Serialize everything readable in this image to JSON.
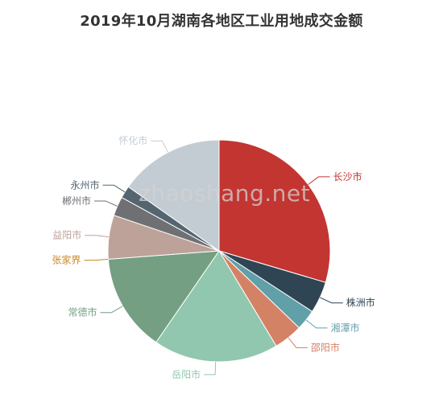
{
  "chart_data": {
    "type": "pie",
    "title": "2019年10月湖南各地区工业用地成交金额",
    "slices": [
      {
        "label": "长沙市",
        "value": 29.6,
        "color": "#c23531"
      },
      {
        "label": "株洲市",
        "value": 4.6,
        "color": "#2f4554"
      },
      {
        "label": "湘潭市",
        "value": 3.0,
        "color": "#61a0a8"
      },
      {
        "label": "邵阳市",
        "value": 4.2,
        "color": "#d48265"
      },
      {
        "label": "岳阳市",
        "value": 18.2,
        "color": "#91c7ae"
      },
      {
        "label": "常德市",
        "value": 14.2,
        "color": "#749f83"
      },
      {
        "label": "张家界",
        "value": 0.0,
        "color": "#ca8622"
      },
      {
        "label": "益阳市",
        "value": 6.4,
        "color": "#bda29a"
      },
      {
        "label": "郴州市",
        "value": 2.8,
        "color": "#6e7074"
      },
      {
        "label": "永州市",
        "value": 1.8,
        "color": "#546570"
      },
      {
        "label": "怀化市",
        "value": 15.2,
        "color": "#c4ccd3"
      }
    ]
  },
  "watermark": "zhaoshang.net"
}
